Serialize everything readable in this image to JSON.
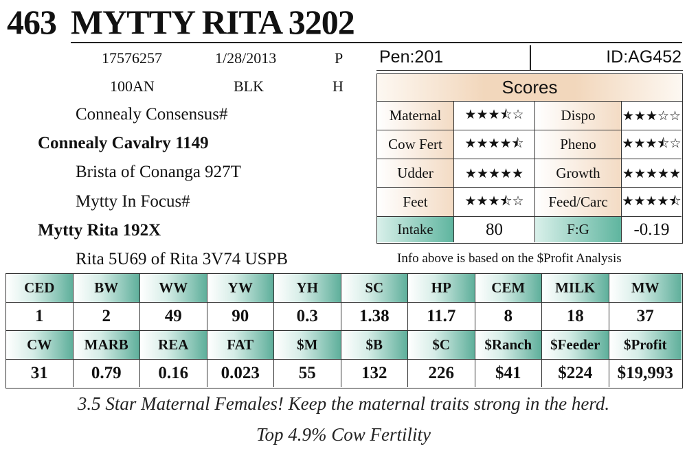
{
  "lot_number": "463",
  "animal_name": "MYTTY RITA 3202",
  "info_row1": [
    "17576257",
    "1/28/2013",
    "P"
  ],
  "info_row2": [
    "100AN",
    "BLK",
    "H"
  ],
  "pedigree": [
    {
      "name": "Connealy Consensus#",
      "bold": false
    },
    {
      "name": "Connealy Cavalry 1149",
      "bold": true
    },
    {
      "name": "Brista of Conanga 927T",
      "bold": false
    },
    {
      "name": "Mytty In Focus#",
      "bold": false
    },
    {
      "name": "Mytty Rita 192X",
      "bold": true
    },
    {
      "name": "Rita 5U69 of Rita 3V74 USPB",
      "bold": false
    }
  ],
  "pen": "Pen:201",
  "id": "ID:AG452",
  "scores": {
    "title": "Scores",
    "rows": [
      {
        "left_label": "Maternal",
        "left_stars": 3.5,
        "left_display": "★★★⯪☆",
        "right_label": "Dispo",
        "right_stars": 3,
        "right_display": "★★★☆☆"
      },
      {
        "left_label": "Cow Fert",
        "left_stars": 4.5,
        "left_display": "★★★★⯪",
        "right_label": "Pheno",
        "right_stars": 3.5,
        "right_display": "★★★⯪☆"
      },
      {
        "left_label": "Udder",
        "left_stars": 5,
        "left_display": "★★★★★",
        "right_label": "Growth",
        "right_stars": 5,
        "right_display": "★★★★★"
      },
      {
        "left_label": "Feet",
        "left_stars": 3.5,
        "left_display": "★★★⯪☆",
        "right_label": "Feed/Carc",
        "right_stars": 4.5,
        "right_display": "★★★★⯪"
      }
    ],
    "intake_label": "Intake",
    "intake_value": "80",
    "fg_label": "F:G",
    "fg_value": "-0.19"
  },
  "analysis_note": "Info above is based on the $Profit Analysis",
  "traits_row1": {
    "headers": [
      "CED",
      "BW",
      "WW",
      "YW",
      "YH",
      "SC",
      "HP",
      "CEM",
      "MILK",
      "MW"
    ],
    "values": [
      "1",
      "2",
      "49",
      "90",
      "0.3",
      "1.38",
      "11.7",
      "8",
      "18",
      "37"
    ]
  },
  "traits_row2": {
    "headers": [
      "CW",
      "MARB",
      "REA",
      "FAT",
      "$M",
      "$B",
      "$C",
      "$Ranch",
      "$Feeder",
      "$Profit"
    ],
    "values": [
      "31",
      "0.79",
      "0.16",
      "0.023",
      "55",
      "132",
      "226",
      "$41",
      "$224",
      "$19,993"
    ]
  },
  "footer_line1": "3.5 Star Maternal Females! Keep the maternal traits strong in the herd.",
  "footer_line2": "Top 4.9% Cow Fertility",
  "colors": {
    "score_label_tan": "#f3dbc4",
    "teal": "#5fb59f"
  }
}
